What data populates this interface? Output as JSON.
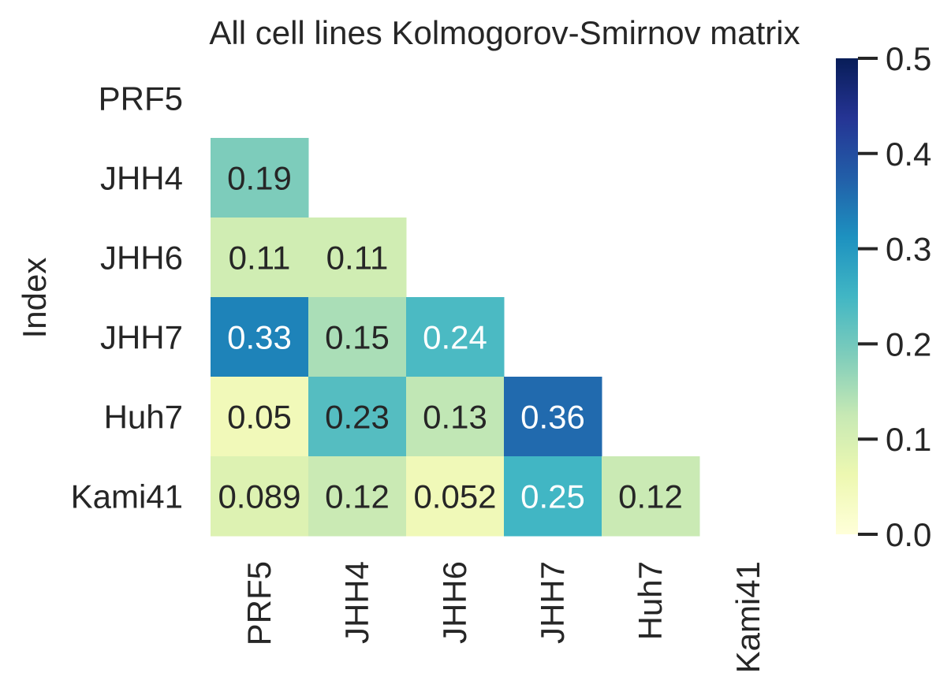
{
  "chart_data": {
    "type": "heatmap",
    "title": "All cell lines Kolmogorov-Smirnov matrix",
    "ylabel": "Index",
    "xlabel": "",
    "rows": [
      "PRF5",
      "JHH4",
      "JHH6",
      "JHH7",
      "Huh7",
      "Kami41"
    ],
    "columns": [
      "PRF5",
      "JHH4",
      "JHH6",
      "JHH7",
      "Huh7",
      "Kami41"
    ],
    "mask": "upper-triangle-and-diagonal",
    "values": [
      [
        null,
        null,
        null,
        null,
        null,
        null
      ],
      [
        0.19,
        null,
        null,
        null,
        null,
        null
      ],
      [
        0.11,
        0.11,
        null,
        null,
        null,
        null
      ],
      [
        0.33,
        0.15,
        0.24,
        null,
        null,
        null
      ],
      [
        0.05,
        0.23,
        0.13,
        0.36,
        null,
        null
      ],
      [
        0.089,
        0.12,
        0.052,
        0.25,
        0.12,
        null
      ]
    ],
    "value_labels": [
      [
        "",
        "",
        "",
        "",
        "",
        ""
      ],
      [
        "0.19",
        "",
        "",
        "",
        "",
        ""
      ],
      [
        "0.11",
        "0.11",
        "",
        "",
        "",
        ""
      ],
      [
        "0.33",
        "0.15",
        "0.24",
        "",
        "",
        ""
      ],
      [
        "0.05",
        "0.23",
        "0.13",
        "0.36",
        "",
        ""
      ],
      [
        "0.089",
        "0.12",
        "0.052",
        "0.25",
        "0.12",
        ""
      ]
    ],
    "colorbar": {
      "colormap": "YlGnBu",
      "range": [
        0.0,
        0.5
      ],
      "ticks": [
        "0.0",
        "0.1",
        "0.2",
        "0.3",
        "0.4",
        "0.5"
      ],
      "colors": [
        "#ffffd9",
        "#edf8b1",
        "#c7e9b4",
        "#7fcdbb",
        "#41b6c4",
        "#1d91c0",
        "#225ea8",
        "#253494",
        "#081d58"
      ]
    },
    "annotation_text_colors": {
      "dark": "#262626",
      "light": "#ffffff"
    }
  }
}
